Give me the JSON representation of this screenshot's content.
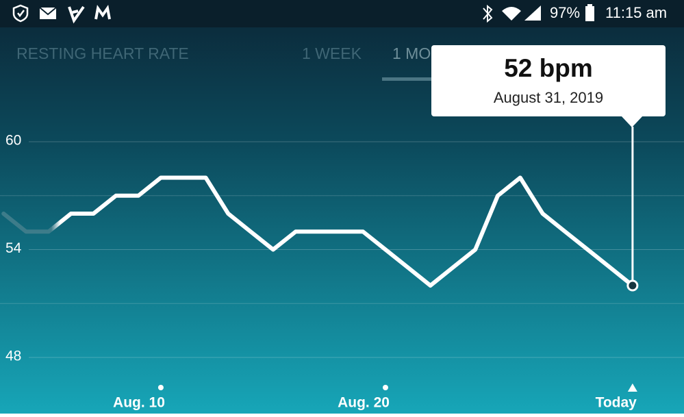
{
  "status_bar": {
    "battery": "97%",
    "time": "11:15 am"
  },
  "tabs": {
    "title": "RESTING HEART RATE",
    "week": "1 WEEK",
    "month": "1 MO"
  },
  "tooltip": {
    "value": "52 bpm",
    "date": "August 31, 2019"
  },
  "chart_data": {
    "type": "line",
    "x": [
      3,
      4,
      5,
      6,
      7,
      8,
      9,
      10,
      11,
      12,
      13,
      14,
      15,
      16,
      17,
      18,
      19,
      20,
      21,
      22,
      23,
      24,
      25,
      26,
      27,
      28,
      29,
      30,
      31
    ],
    "values": [
      56,
      55,
      55,
      56,
      56,
      57,
      57,
      58,
      58,
      58,
      56,
      55,
      54,
      55,
      55,
      55,
      55,
      54,
      53,
      52,
      53,
      54,
      57,
      58,
      56,
      55,
      54,
      53,
      52
    ],
    "color": "#ffffff",
    "xlim": [
      2.84,
      33.29
    ],
    "xticks": [
      {
        "value": 10,
        "label": "Aug. 10"
      },
      {
        "value": 20,
        "label": "Aug. 20"
      },
      {
        "value": 31,
        "label": "Today"
      }
    ],
    "ylim": [
      46.55,
      60.65
    ],
    "yticks": [
      48,
      54,
      60
    ],
    "minor_yticks": [
      51,
      57
    ],
    "grid": true
  }
}
